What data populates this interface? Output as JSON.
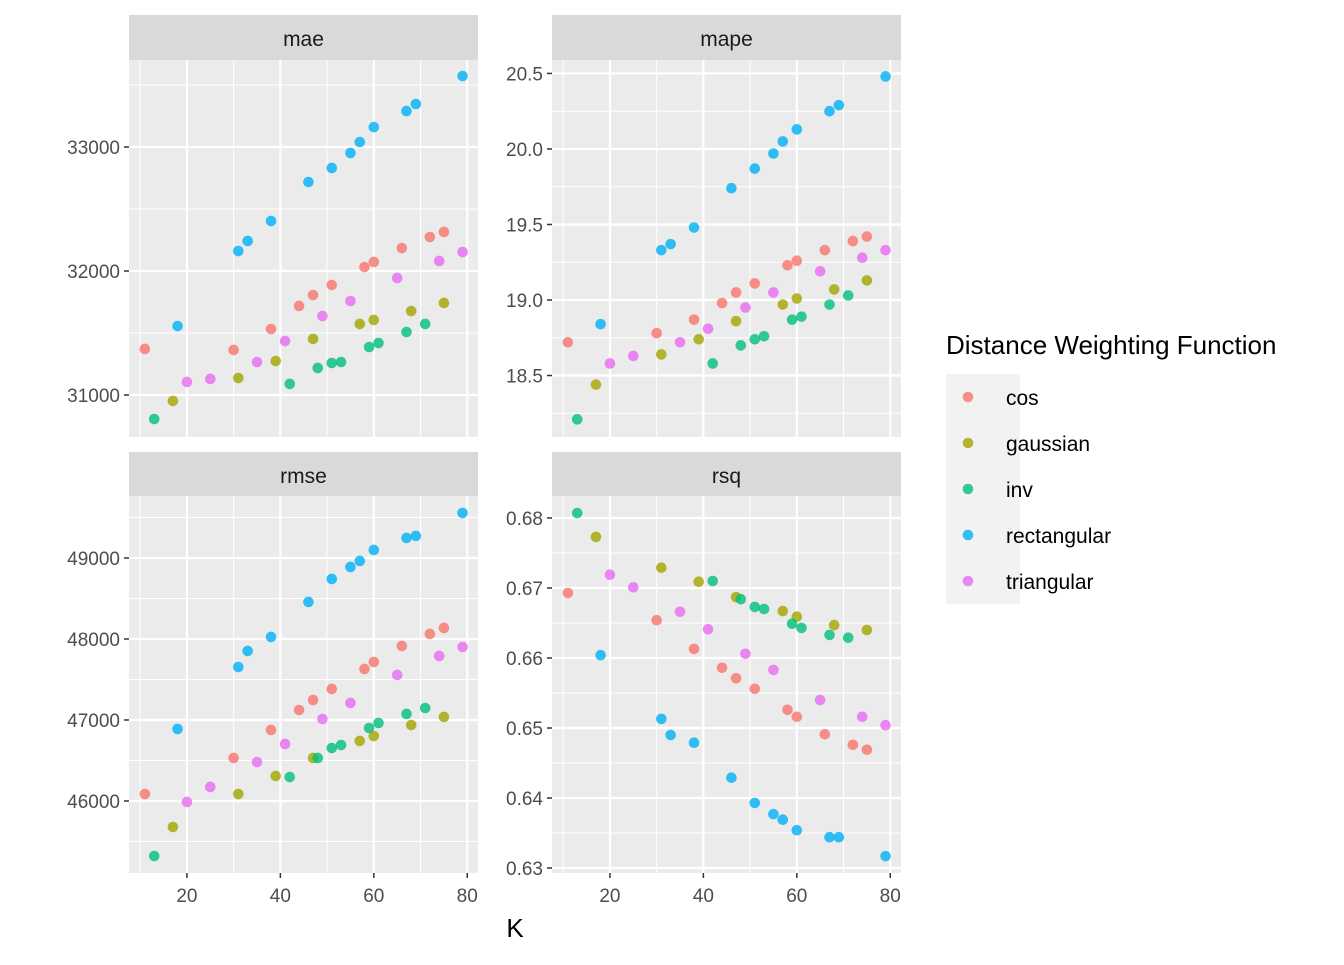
{
  "chart_data": {
    "type": "scatter",
    "xlabel": "K",
    "xlim": [
      7.6,
      82.3
    ],
    "x_ticks": [
      20,
      40,
      60,
      80
    ],
    "legend": {
      "title": "Distance Weighting Function",
      "placement": "right",
      "entries": [
        "cos",
        "gaussian",
        "inv",
        "rectangular",
        "triangular"
      ],
      "colors": [
        "#F8766D",
        "#A3A500",
        "#00BF7D",
        "#00B0F6",
        "#E76BF3"
      ]
    },
    "x": {
      "cos": [
        11,
        30,
        38,
        44,
        47,
        51,
        58,
        60,
        66,
        72,
        75
      ],
      "gaussian": [
        17,
        31,
        39,
        47,
        57,
        60,
        68,
        75
      ],
      "inv": [
        13,
        42,
        48,
        51,
        53,
        59,
        61,
        67,
        71
      ],
      "rectangular": [
        18,
        31,
        33,
        38,
        46,
        51,
        55,
        57,
        60,
        67,
        69,
        79
      ],
      "triangular": [
        20,
        25,
        35,
        41,
        49,
        55,
        65,
        74,
        79
      ]
    },
    "facets": [
      {
        "title": "mae",
        "ylim": [
          30661,
          33702
        ],
        "y_ticks": [
          31000,
          32000,
          33000
        ],
        "y_tick_labels": [
          "31000",
          "32000",
          "33000"
        ],
        "values": {
          "cos": [
            31371,
            31363,
            31532,
            31718,
            31806,
            31887,
            32032,
            32073,
            32185,
            32274,
            32315
          ],
          "gaussian": [
            30952,
            31137,
            31274,
            31452,
            31573,
            31605,
            31677,
            31742
          ],
          "inv": [
            30806,
            31089,
            31218,
            31258,
            31266,
            31387,
            31419,
            31508,
            31573
          ],
          "rectangular": [
            31556,
            32161,
            32242,
            32403,
            32718,
            32831,
            32952,
            33040,
            33161,
            33290,
            33347,
            33573
          ],
          "triangular": [
            31105,
            31129,
            31266,
            31435,
            31637,
            31758,
            31944,
            32081,
            32153
          ]
        }
      },
      {
        "title": "mape",
        "ylim": [
          18.093,
          20.589
        ],
        "y_ticks": [
          18.5,
          19.0,
          19.5,
          20.0,
          20.5
        ],
        "y_tick_labels": [
          "18.5",
          "19.0",
          "19.5",
          "20.0",
          "20.5"
        ],
        "values": {
          "cos": [
            18.72,
            18.78,
            18.87,
            18.98,
            19.05,
            19.11,
            19.23,
            19.26,
            19.33,
            19.39,
            19.42
          ],
          "gaussian": [
            18.44,
            18.64,
            18.74,
            18.86,
            18.97,
            19.01,
            19.07,
            19.13
          ],
          "inv": [
            18.21,
            18.58,
            18.7,
            18.74,
            18.76,
            18.87,
            18.89,
            18.97,
            19.03
          ],
          "rectangular": [
            18.84,
            19.33,
            19.37,
            19.48,
            19.74,
            19.87,
            19.97,
            20.05,
            20.13,
            20.25,
            20.29,
            20.48
          ],
          "triangular": [
            18.58,
            18.63,
            18.72,
            18.81,
            18.95,
            19.05,
            19.19,
            19.28,
            19.33
          ]
        }
      },
      {
        "title": "rmse",
        "ylim": [
          45111,
          49765
        ],
        "y_ticks": [
          46000,
          47000,
          48000,
          49000
        ],
        "y_tick_labels": [
          "46000",
          "47000",
          "48000",
          "49000"
        ],
        "values": {
          "cos": [
            46086,
            46531,
            46877,
            47123,
            47247,
            47383,
            47630,
            47716,
            47914,
            48062,
            48136
          ],
          "gaussian": [
            45679,
            46086,
            46309,
            46531,
            46741,
            46802,
            46938,
            47037
          ],
          "inv": [
            45321,
            46296,
            46531,
            46654,
            46691,
            46901,
            46963,
            47074,
            47148
          ],
          "rectangular": [
            46889,
            47654,
            47852,
            48025,
            48457,
            48741,
            48889,
            48963,
            49099,
            49247,
            49272,
            49556
          ],
          "triangular": [
            45988,
            46173,
            46481,
            46704,
            47012,
            47210,
            47556,
            47790,
            47901
          ]
        }
      },
      {
        "title": "rsq",
        "ylim": [
          0.62929,
          0.68314
        ],
        "y_ticks": [
          0.63,
          0.64,
          0.65,
          0.66,
          0.67,
          0.68
        ],
        "y_tick_labels": [
          "0.63",
          "0.64",
          "0.65",
          "0.66",
          "0.67",
          "0.68"
        ],
        "values": {
          "cos": [
            0.6693,
            0.6654,
            0.6613,
            0.6586,
            0.6571,
            0.6556,
            0.6526,
            0.6516,
            0.6491,
            0.6476,
            0.6469
          ],
          "gaussian": [
            0.6773,
            0.6729,
            0.6709,
            0.6687,
            0.6667,
            0.6659,
            0.6647,
            0.664
          ],
          "inv": [
            0.6807,
            0.671,
            0.6684,
            0.6673,
            0.667,
            0.6649,
            0.6643,
            0.6633,
            0.6629
          ],
          "rectangular": [
            0.6604,
            0.6513,
            0.649,
            0.6479,
            0.6429,
            0.6393,
            0.6377,
            0.6369,
            0.6354,
            0.6344,
            0.6344,
            0.6317
          ],
          "triangular": [
            0.6719,
            0.6701,
            0.6666,
            0.6641,
            0.6606,
            0.6583,
            0.654,
            0.6516,
            0.6504
          ]
        }
      }
    ]
  }
}
